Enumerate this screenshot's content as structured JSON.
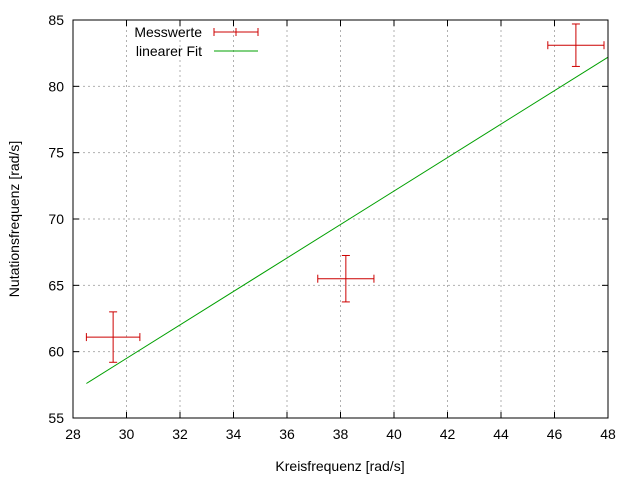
{
  "chart_data": {
    "type": "scatter",
    "title": "",
    "xlabel": "Kreisfrequenz [rad/s]",
    "ylabel": "Nutationsfrequenz [rad/s]",
    "xlim": [
      28,
      48
    ],
    "ylim": [
      55,
      85
    ],
    "xticks": [
      28,
      30,
      32,
      34,
      36,
      38,
      40,
      42,
      44,
      46,
      48
    ],
    "yticks": [
      55,
      60,
      65,
      70,
      75,
      80,
      85
    ],
    "grid": true,
    "legend_position": "top-left",
    "series": [
      {
        "name": "Messwerte",
        "kind": "errorbars",
        "color": "#cc0000",
        "points": [
          {
            "x": 29.5,
            "y": 61.1,
            "xerr": 1.0,
            "yerr": 1.9
          },
          {
            "x": 38.2,
            "y": 65.5,
            "xerr": 1.05,
            "yerr": 1.75
          },
          {
            "x": 46.8,
            "y": 83.1,
            "xerr": 1.05,
            "yerr": 1.6
          }
        ]
      },
      {
        "name": "linearer Fit",
        "kind": "line",
        "color": "#00a000",
        "x": [
          28.5,
          48.0
        ],
        "y": [
          57.6,
          82.2
        ]
      }
    ]
  }
}
